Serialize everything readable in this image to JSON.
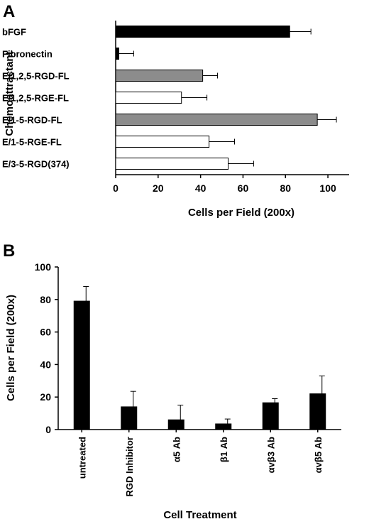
{
  "chart_data": [
    {
      "panel": "A",
      "type": "bar",
      "orientation": "horizontal",
      "ylabel": "Chemoattractant",
      "xlabel": "Cells per Field (200x)",
      "xlim": [
        0,
        110
      ],
      "xticks": [
        "0",
        "20",
        "40",
        "60",
        "80",
        "100"
      ],
      "grid": false,
      "categories": [
        "bFGF",
        "Fibronectin",
        "E/1,2,5-RGD-FL",
        "E/1,2,5-RGE-FL",
        "E/1-5-RGD-FL",
        "E/1-5-RGE-FL",
        "E/3-5-RGD(374)"
      ],
      "values": [
        82,
        1.5,
        41,
        31,
        95,
        44,
        53
      ],
      "errors": [
        10,
        7,
        7,
        12,
        9,
        12,
        12
      ],
      "colors": [
        "#000000",
        "#000000",
        "#8c8c8c",
        "#ffffff",
        "#8c8c8c",
        "#ffffff",
        "#ffffff"
      ]
    },
    {
      "panel": "B",
      "type": "bar",
      "orientation": "vertical",
      "ylabel": "Cells per Field (200x)",
      "xlabel": "Cell Treatment",
      "ylim": [
        0,
        100
      ],
      "yticks": [
        "0",
        "20",
        "40",
        "60",
        "80",
        "100"
      ],
      "grid": false,
      "categories": [
        "untreated",
        "RGD Inhibitor",
        "α5 Ab",
        "β1 Ab",
        "αvβ3 Ab",
        "αvβ5 Ab"
      ],
      "values": [
        79,
        14,
        6,
        3.5,
        16.5,
        22
      ],
      "errors": [
        9,
        9.5,
        9,
        3,
        2.5,
        11
      ],
      "colors": [
        "#000000",
        "#000000",
        "#000000",
        "#000000",
        "#000000",
        "#000000"
      ]
    }
  ],
  "panel_labels": {
    "a": "A",
    "b": "B"
  }
}
